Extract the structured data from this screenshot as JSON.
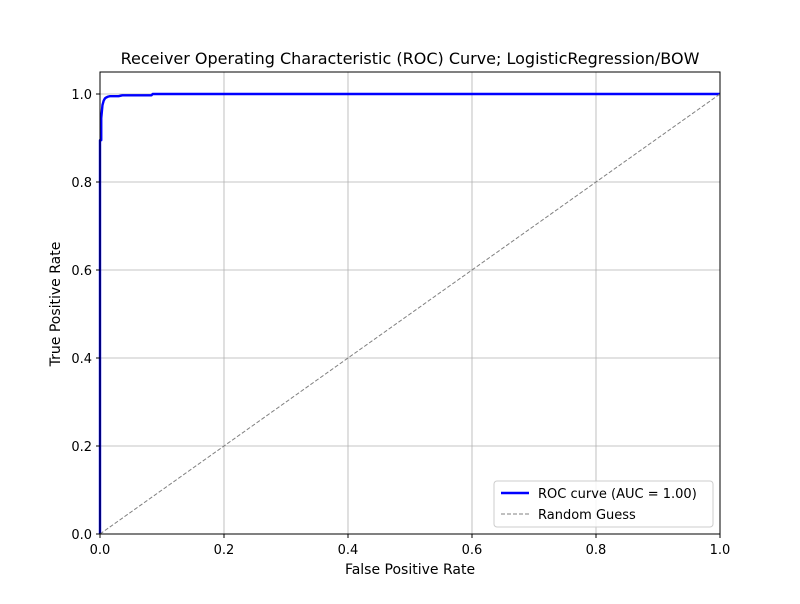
{
  "colors": {
    "roc": "#0000ff",
    "random": "#808080",
    "grid": "#b0b0b0",
    "axes": "#000000",
    "background": "#ffffff"
  },
  "chart_data": {
    "type": "line",
    "title": "Receiver Operating Characteristic (ROC) Curve; LogisticRegression/BOW",
    "xlabel": "False Positive Rate",
    "ylabel": "True Positive Rate",
    "xlim": [
      0.0,
      1.0
    ],
    "ylim": [
      0.0,
      1.05
    ],
    "xticks": [
      0.0,
      0.2,
      0.4,
      0.6,
      0.8,
      1.0
    ],
    "yticks": [
      0.0,
      0.2,
      0.4,
      0.6,
      0.8,
      1.0
    ],
    "xtick_labels": [
      "0.0",
      "0.2",
      "0.4",
      "0.6",
      "0.8",
      "1.0"
    ],
    "ytick_labels": [
      "0.0",
      "0.2",
      "0.4",
      "0.6",
      "0.8",
      "1.0"
    ],
    "grid": true,
    "legend_position": "lower-right",
    "series": [
      {
        "name": "ROC curve (AUC = 1.00)",
        "style": "solid",
        "color": "#0000ff",
        "x": [
          0.0,
          0.0,
          0.002,
          0.002,
          0.004,
          0.006,
          0.008,
          0.01,
          0.013,
          0.016,
          0.02,
          0.03,
          0.036,
          0.06,
          0.083,
          0.085,
          0.1,
          0.3,
          0.6,
          1.0
        ],
        "y": [
          0.0,
          0.895,
          0.895,
          0.945,
          0.975,
          0.985,
          0.99,
          0.992,
          0.994,
          0.995,
          0.995,
          0.995,
          0.997,
          0.997,
          0.997,
          1.0,
          1.0,
          1.0,
          1.0,
          1.0
        ]
      },
      {
        "name": "Random Guess",
        "style": "dashed",
        "color": "#808080",
        "x": [
          0.0,
          1.0
        ],
        "y": [
          0.0,
          1.0
        ]
      }
    ]
  }
}
